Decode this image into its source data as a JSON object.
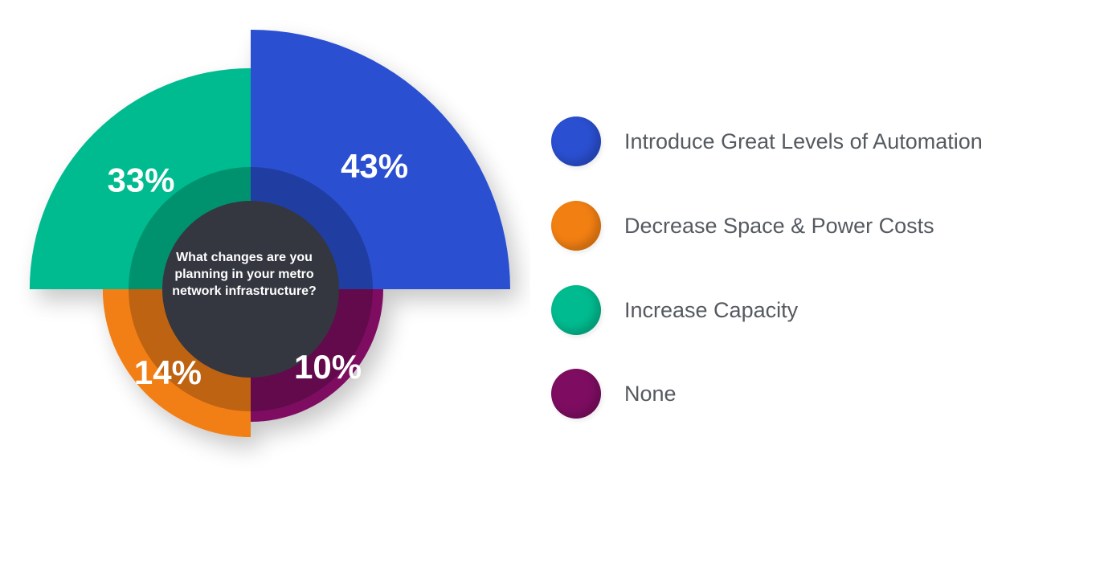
{
  "chart_data": {
    "type": "pie",
    "question": "What changes are you planning in your metro network infrastructure?",
    "slices": [
      {
        "name": "Introduce Great Levels of Automation",
        "value": 43,
        "label": "43%",
        "color": "#2a4fd0"
      },
      {
        "name": "Decrease Space & Power Costs",
        "value": 14,
        "label": "14%",
        "color": "#f27f12"
      },
      {
        "name": "Increase Capacity",
        "value": 33,
        "label": "33%",
        "color": "#00bb8f"
      },
      {
        "name": "None",
        "value": 10,
        "label": "10%",
        "color": "#7e0d62"
      }
    ],
    "legend_position": "right"
  }
}
